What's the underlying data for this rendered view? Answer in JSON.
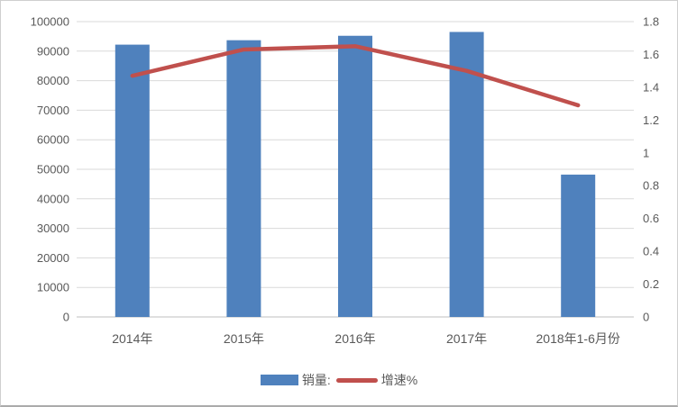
{
  "chart_data": {
    "type": "combo",
    "title": "",
    "categories": [
      "2014年",
      "2015年",
      "2016年",
      "2017年",
      "2018年1-6月份"
    ],
    "series": [
      {
        "name": "销量:",
        "type": "bar",
        "axis": "left",
        "color": "#4F81BD",
        "values": [
          92200,
          93700,
          95200,
          96500,
          48200
        ]
      },
      {
        "name": "增速%",
        "type": "line",
        "axis": "right",
        "color": "#C0504D",
        "values": [
          1.47,
          1.63,
          1.65,
          1.5,
          1.29
        ]
      }
    ],
    "left_axis": {
      "min": 0,
      "max": 100000,
      "step": 10000
    },
    "right_axis": {
      "min": 0,
      "max": 1.8,
      "step": 0.2
    },
    "grid": true,
    "legend_position": "bottom",
    "colors": {
      "grid": "#D9D9D9",
      "axis_line": "#BFBFBF",
      "text": "#595959",
      "background": "#FFFFFF",
      "frame_border": "#CFCFCF"
    }
  },
  "legend": {
    "items": [
      {
        "label": "销量:"
      },
      {
        "label": "增速%"
      }
    ]
  }
}
